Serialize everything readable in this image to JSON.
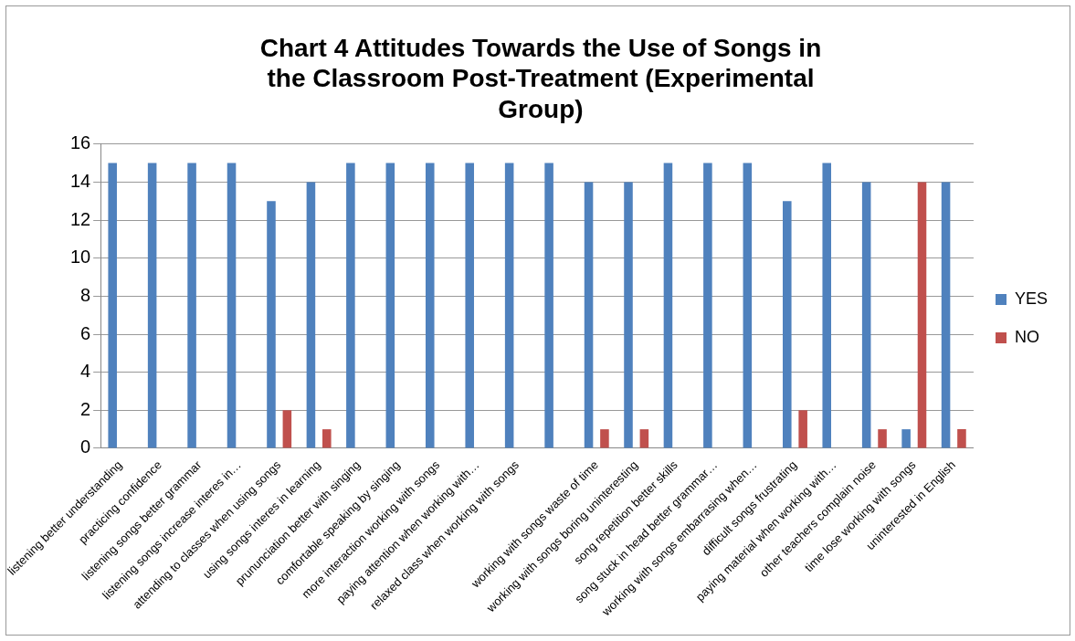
{
  "chart_data": {
    "type": "bar",
    "title": "Chart 4 Attitudes Towards the Use of Songs in the Classroom Post-Treatment (Experimental Group)",
    "categories": [
      "listening better understanding",
      "practicing confidence",
      "listening songs better grammar",
      "listening songs increase interes in…",
      "attending to classes when using songs",
      "using songs interes in learning",
      "prununciation better with singing",
      "comfortable speaking by singing",
      "more interaction working with songs",
      "paying attention when working with…",
      "relaxed class when working with songs",
      null,
      "working with songs waste of time",
      "working with songs boring uninteresting",
      "song repetition better skills",
      "song stuck in head better grammar…",
      "working with songs embarrasing when…",
      "difficult songs frustrating",
      "paying material when working with…",
      "other teachers complain noise",
      "time lose working with songs",
      "uninterested in English"
    ],
    "series": [
      {
        "name": "YES",
        "color": "#4f81bd",
        "values": [
          15,
          15,
          15,
          15,
          13,
          14,
          15,
          15,
          15,
          15,
          15,
          15,
          14,
          14,
          15,
          15,
          15,
          13,
          15,
          14,
          1,
          14
        ]
      },
      {
        "name": "NO",
        "color": "#c0504d",
        "values": [
          0,
          0,
          0,
          0,
          2,
          1,
          0,
          0,
          0,
          0,
          0,
          0,
          1,
          1,
          0,
          0,
          0,
          2,
          0,
          1,
          14,
          1
        ]
      }
    ],
    "ylim": [
      0,
      16
    ],
    "yticks": [
      0,
      2,
      4,
      6,
      8,
      10,
      12,
      14,
      16
    ],
    "grid": "y",
    "legend": "right"
  }
}
